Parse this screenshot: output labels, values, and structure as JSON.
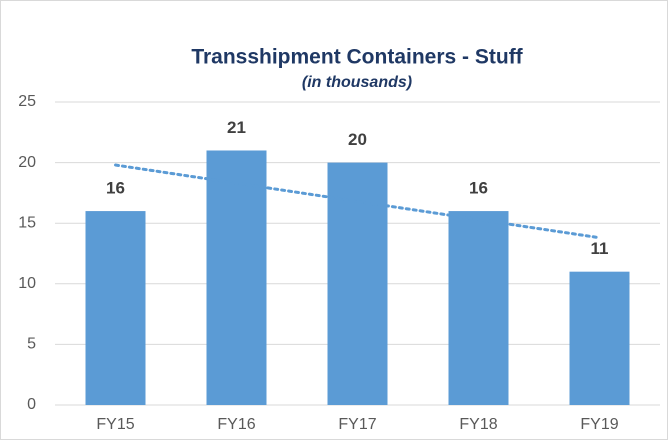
{
  "chart_data": {
    "type": "bar",
    "title": "Transshipment Containers - Stuff",
    "subtitle": "(in thousands)",
    "categories": [
      "FY15",
      "FY16",
      "FY17",
      "FY18",
      "FY19"
    ],
    "values": [
      16,
      21,
      20,
      16,
      11
    ],
    "color": "#5b9bd5",
    "ylim": [
      0,
      25
    ],
    "yticks": [
      0,
      5,
      10,
      15,
      20,
      25
    ],
    "grid": true,
    "trendline": "linear"
  }
}
